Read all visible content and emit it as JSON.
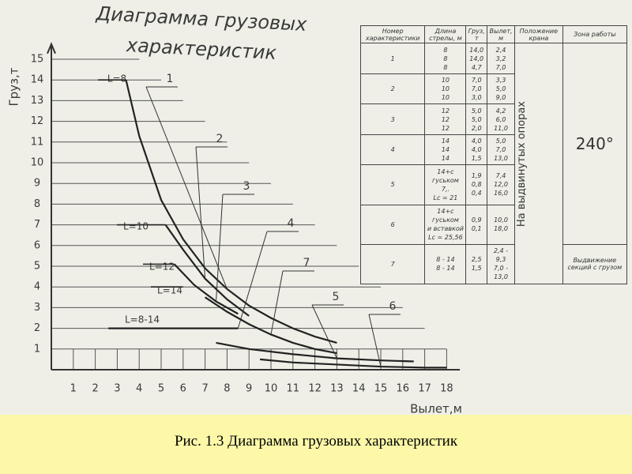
{
  "diagram": {
    "title": [
      "Диаграмма грузовых",
      "характеристик"
    ],
    "y_label": "Груз,т",
    "x_label": "Вылет,м",
    "x_ticks": [
      1,
      2,
      3,
      4,
      5,
      6,
      7,
      8,
      9,
      10,
      11,
      12,
      13,
      14,
      15,
      16,
      17,
      18
    ],
    "y_ticks": [
      1,
      2,
      3,
      4,
      5,
      6,
      7,
      8,
      9,
      10,
      11,
      12,
      13,
      14,
      15
    ],
    "lengths": [
      "L=8",
      "L=10",
      "L=12",
      "L=14",
      "L=8-14"
    ],
    "curves": [
      {
        "name": "1",
        "x": [
          3.4,
          4,
          5,
          6,
          7,
          8,
          9,
          10,
          11,
          12,
          13
        ],
        "y": [
          14,
          11.3,
          8.2,
          6.3,
          4.9,
          3.9,
          3.1,
          2.5,
          2.0,
          1.6,
          1.3
        ]
      },
      {
        "name": "2",
        "x": [
          5.2,
          6,
          7,
          8,
          9
        ],
        "y": [
          7,
          5.8,
          4.4,
          3.4,
          2.6
        ]
      },
      {
        "name": "3",
        "x": [
          5.6,
          6.5,
          7.5,
          8.5
        ],
        "y": [
          5.1,
          4.1,
          3.3,
          2.7
        ]
      },
      {
        "name": "4",
        "x": [
          2.6,
          8.5
        ],
        "y": [
          2,
          2
        ]
      },
      {
        "name": "7",
        "x": [
          7,
          8,
          9,
          10,
          11,
          12,
          13
        ],
        "y": [
          3.5,
          2.8,
          2.2,
          1.7,
          1.3,
          1.0,
          0.8
        ]
      },
      {
        "name": "5",
        "x": [
          7.5,
          9,
          11,
          13,
          15,
          16.5
        ],
        "y": [
          1.3,
          1.0,
          0.75,
          0.55,
          0.45,
          0.4
        ]
      },
      {
        "name": "6",
        "x": [
          9.5,
          11,
          13,
          15,
          17,
          18
        ],
        "y": [
          0.5,
          0.35,
          0.25,
          0.15,
          0.1,
          0.1
        ]
      }
    ]
  },
  "table": {
    "headers": [
      "Номер характеристики",
      "Длина стрелы, м",
      "Груз, т",
      "Вылет, м",
      "Положение крана",
      "Зона работы"
    ],
    "rows": [
      [
        [
          "1"
        ],
        [
          "8",
          "8",
          "8"
        ],
        [
          "14,0",
          "14,0",
          "4,7"
        ],
        [
          "2,4",
          "3,2",
          "7,0"
        ]
      ],
      [
        [
          "2"
        ],
        [
          "10",
          "10",
          "10"
        ],
        [
          "7,0",
          "7,0",
          "3,0"
        ],
        [
          "3,3",
          "5,0",
          "9,0"
        ]
      ],
      [
        [
          "3"
        ],
        [
          "12",
          "12",
          "12"
        ],
        [
          "5,0",
          "5,0",
          "2,0"
        ],
        [
          "4,2",
          "6,0",
          "11,0"
        ]
      ],
      [
        [
          "4"
        ],
        [
          "14",
          "14",
          "14"
        ],
        [
          "4,0",
          "4,0",
          "1,5"
        ],
        [
          "5,0",
          "7,0",
          "13,0"
        ]
      ],
      [
        [
          "5"
        ],
        [
          "14+с гуськом",
          "7,.",
          "Lс = 21"
        ],
        [
          "1,9",
          "0,8",
          "0,4"
        ],
        [
          "7,4",
          "12,0",
          "16,0"
        ]
      ],
      [
        [
          "6"
        ],
        [
          "14+с гуськом",
          "и вставкой",
          "Lс = 25,56"
        ],
        [
          "0,9",
          "0,1"
        ],
        [
          "10,0",
          "18,0"
        ]
      ],
      [
        [
          "7"
        ],
        [
          "8 - 14",
          "8 - 14"
        ],
        [
          "2,5",
          "1,5"
        ],
        [
          "2,4 - 9,3",
          "7,0 - 13,0"
        ]
      ]
    ],
    "position": "На выдвинутых опорах",
    "zone": "240°",
    "zone_note": "Выдвижение секций с грузом"
  },
  "caption": "Рис. 1.3 Диаграмма грузовых характеристик"
}
